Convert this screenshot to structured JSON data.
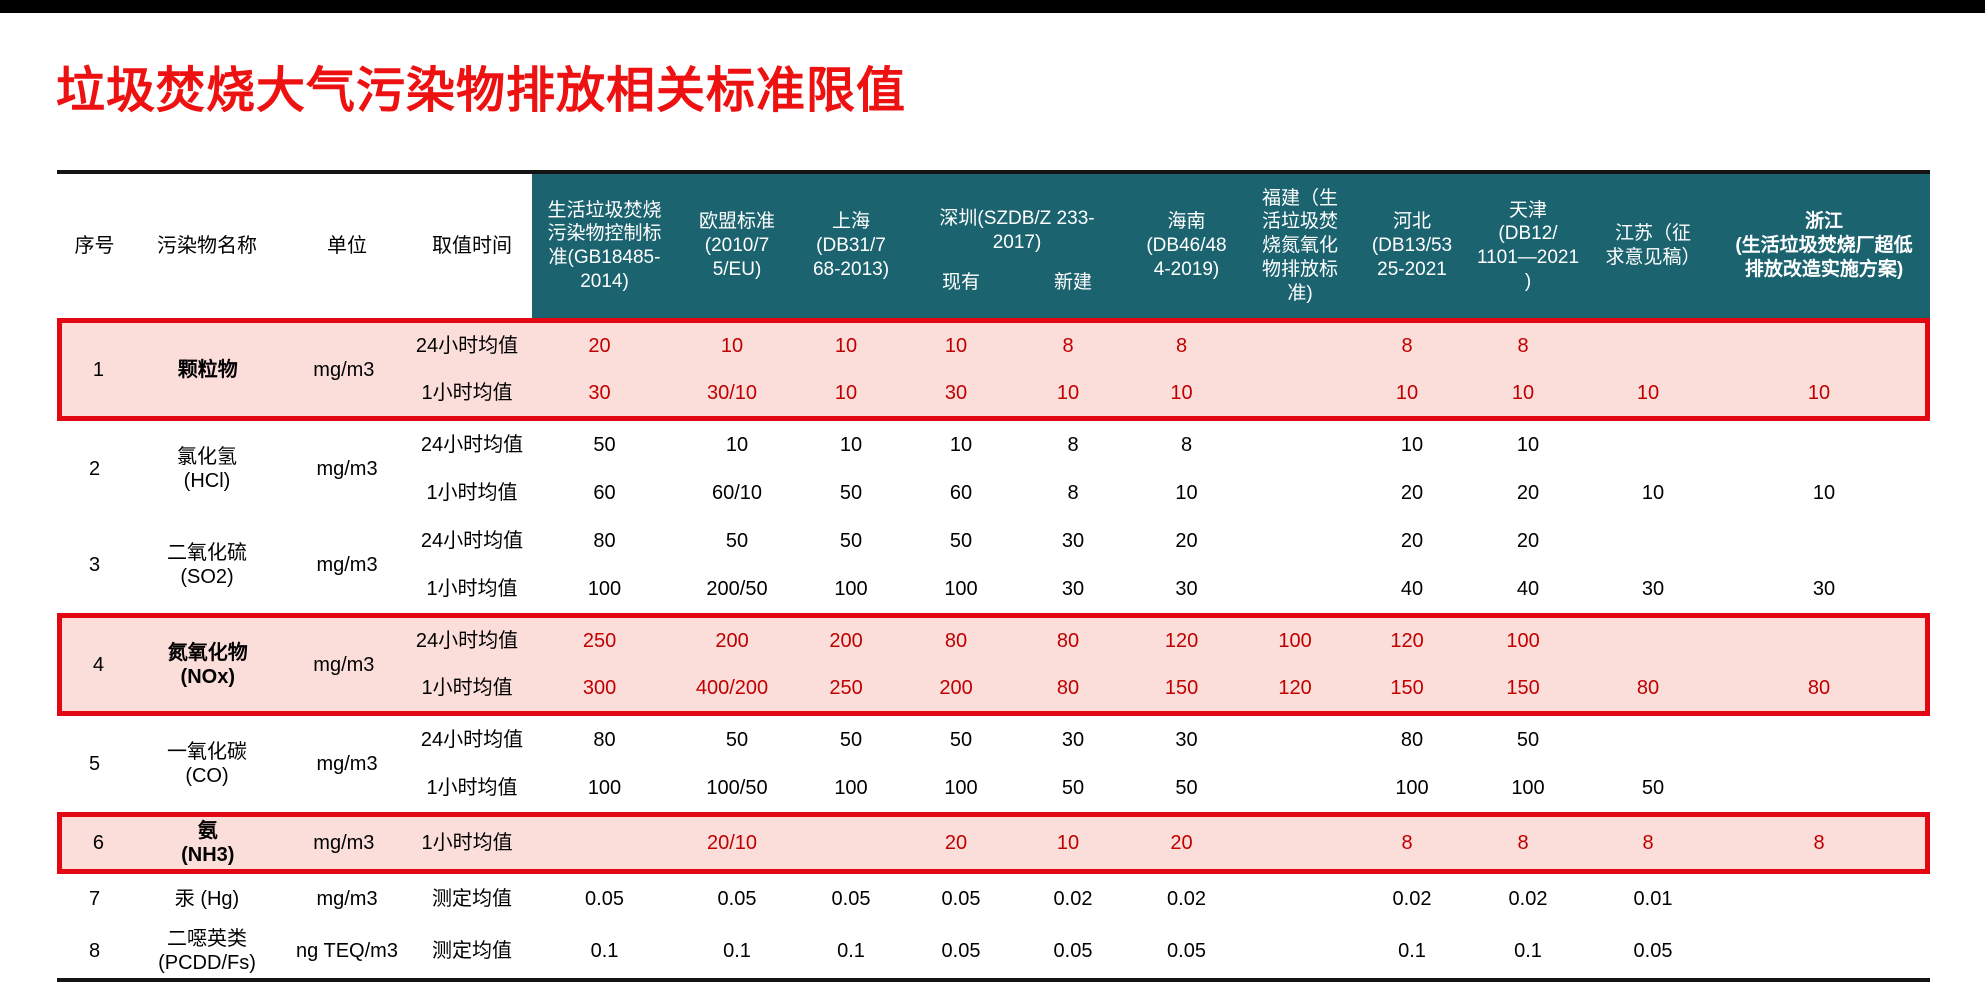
{
  "page": {
    "title": "垃圾焚烧大气污染物排放相关标准限值"
  },
  "colors": {
    "title_red": "#ee1111",
    "header_teal": "#1c6370",
    "highlight_pink": "#fbdeda",
    "highlight_border_red": "#e30613",
    "highlight_value_red": "#c00000"
  },
  "table": {
    "base_headers": [
      "序号",
      "污染物名称",
      "单位",
      "取值时间"
    ],
    "standards": [
      {
        "label": "生活垃圾焚烧\n污染物控制标\n准(GB18485-\n2014)"
      },
      {
        "label": "欧盟标准\n(2010/7\n5/EU)"
      },
      {
        "label": "上海\n(DB31/7\n68-2013)"
      },
      {
        "label": "深圳(SZDB/Z 233-\n2017)",
        "sub": [
          "现有",
          "新建"
        ]
      },
      {
        "label": "海南\n(DB46/48\n4-2019)"
      },
      {
        "label": "福建（生\n活垃圾焚\n烧氮氧化\n物排放标\n准)"
      },
      {
        "label": "河北\n(DB13/53\n25-2021"
      },
      {
        "label": "天津\n(DB12/\n1101—2021\n)"
      },
      {
        "label": "江苏（征\n求意见稿）"
      },
      {
        "label": "浙江\n(生活垃圾焚烧厂超低\n排放改造实施方案)",
        "bold": true
      }
    ],
    "rows": [
      {
        "no": "1",
        "name": "颗粒物",
        "unit": "mg/m3",
        "highlight": true,
        "bold_name": true,
        "subrows": [
          {
            "time": "24小时均值",
            "values": [
              "20",
              "10",
              "10",
              "10",
              "8",
              "8",
              "",
              "8",
              "8",
              "",
              ""
            ]
          },
          {
            "time": "1小时均值",
            "values": [
              "30",
              "30/10",
              "10",
              "30",
              "10",
              "10",
              "",
              "10",
              "10",
              "10",
              "10"
            ]
          }
        ]
      },
      {
        "no": "2",
        "name": "氯化氢\n(HCl)",
        "unit": "mg/m3",
        "highlight": false,
        "bold_name": false,
        "subrows": [
          {
            "time": "24小时均值",
            "values": [
              "50",
              "10",
              "10",
              "10",
              "8",
              "8",
              "",
              "10",
              "10",
              "",
              ""
            ]
          },
          {
            "time": "1小时均值",
            "values": [
              "60",
              "60/10",
              "50",
              "60",
              "8",
              "10",
              "",
              "20",
              "20",
              "10",
              "10"
            ]
          }
        ]
      },
      {
        "no": "3",
        "name": "二氧化硫\n(SO2)",
        "unit": "mg/m3",
        "highlight": false,
        "bold_name": false,
        "subrows": [
          {
            "time": "24小时均值",
            "values": [
              "80",
              "50",
              "50",
              "50",
              "30",
              "20",
              "",
              "20",
              "20",
              "",
              ""
            ]
          },
          {
            "time": "1小时均值",
            "values": [
              "100",
              "200/50",
              "100",
              "100",
              "30",
              "30",
              "",
              "40",
              "40",
              "30",
              "30"
            ]
          }
        ]
      },
      {
        "no": "4",
        "name": "氮氧化物\n(NOx)",
        "unit": "mg/m3",
        "highlight": true,
        "bold_name": true,
        "subrows": [
          {
            "time": "24小时均值",
            "values": [
              "250",
              "200",
              "200",
              "80",
              "80",
              "120",
              "100",
              "120",
              "100",
              "",
              ""
            ]
          },
          {
            "time": "1小时均值",
            "values": [
              "300",
              "400/200",
              "250",
              "200",
              "80",
              "150",
              "120",
              "150",
              "150",
              "80",
              "80"
            ]
          }
        ]
      },
      {
        "no": "5",
        "name": "一氧化碳\n(CO)",
        "unit": "mg/m3",
        "highlight": false,
        "bold_name": false,
        "subrows": [
          {
            "time": "24小时均值",
            "values": [
              "80",
              "50",
              "50",
              "50",
              "30",
              "30",
              "",
              "80",
              "50",
              "",
              ""
            ]
          },
          {
            "time": "1小时均值",
            "values": [
              "100",
              "100/50",
              "100",
              "100",
              "50",
              "50",
              "",
              "100",
              "100",
              "50",
              ""
            ]
          }
        ]
      },
      {
        "no": "6",
        "name": "氨\n(NH3)",
        "unit": "mg/m3",
        "highlight": true,
        "bold_name": true,
        "subrows": [
          {
            "time": "1小时均值",
            "values": [
              "",
              "20/10",
              "",
              "20",
              "10",
              "20",
              "",
              "8",
              "8",
              "8",
              "8"
            ]
          }
        ]
      },
      {
        "no": "7",
        "name": "汞 (Hg)",
        "unit": "mg/m3",
        "highlight": false,
        "bold_name": false,
        "subrows": [
          {
            "time": "测定均值",
            "values": [
              "0.05",
              "0.05",
              "0.05",
              "0.05",
              "0.02",
              "0.02",
              "",
              "0.02",
              "0.02",
              "0.01",
              ""
            ]
          }
        ]
      },
      {
        "no": "8",
        "name": "二噁英类\n(PCDD/Fs)",
        "unit": "ng TEQ/m3",
        "highlight": false,
        "bold_name": false,
        "subrows": [
          {
            "time": "测定均值",
            "values": [
              "0.1",
              "0.1",
              "0.1",
              "0.05",
              "0.05",
              "0.05",
              "",
              "0.1",
              "0.1",
              "0.05",
              ""
            ]
          }
        ]
      }
    ]
  }
}
